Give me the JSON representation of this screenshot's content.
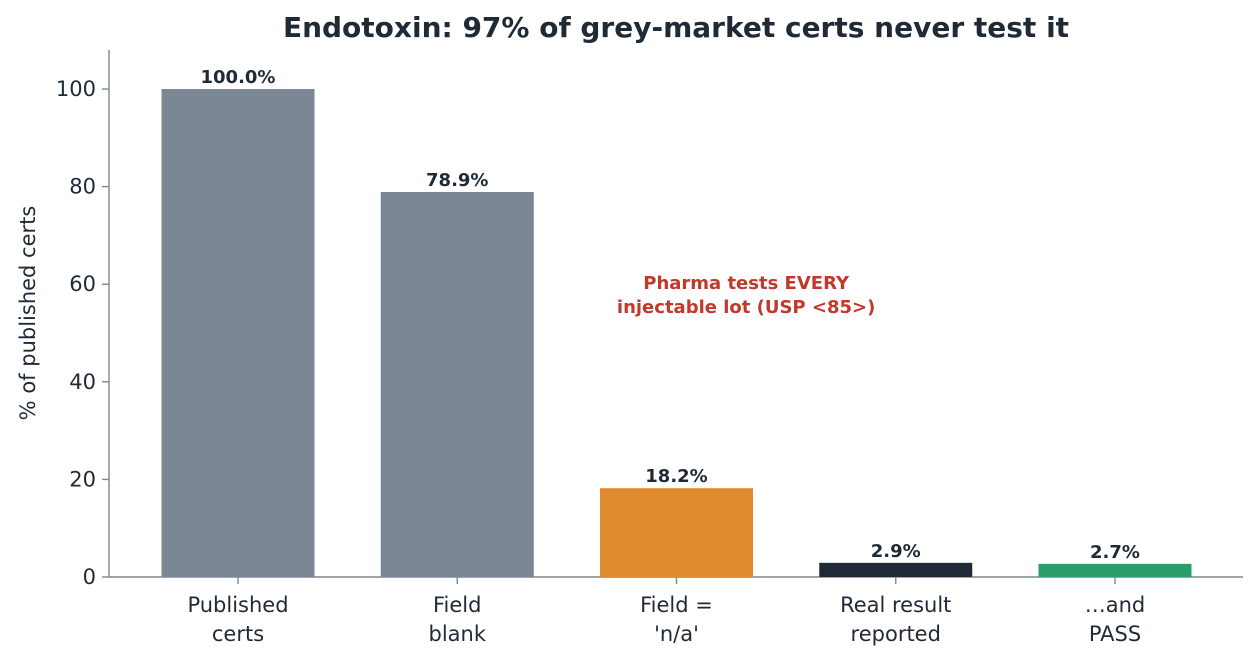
{
  "chart_data": {
    "type": "bar",
    "title": "Endotoxin: 97% of grey-market certs never test it",
    "xlabel": "",
    "ylabel": "% of published certs",
    "ylim": [
      0,
      108
    ],
    "yticks": [
      0,
      20,
      40,
      60,
      80,
      100
    ],
    "grid": false,
    "categories": [
      [
        "Published",
        "certs"
      ],
      [
        "Field",
        "blank"
      ],
      [
        "Field =",
        "'n/a'"
      ],
      [
        "Real result",
        "reported"
      ],
      [
        "…and",
        "PASS"
      ]
    ],
    "values": [
      100.0,
      78.9,
      18.2,
      2.9,
      2.7
    ],
    "data_labels": [
      "100.0%",
      "78.9%",
      "18.2%",
      "2.9%",
      "2.7%"
    ],
    "bar_colors": [
      "#7b8794",
      "#7b8794",
      "#e08c2e",
      "#1f2a36",
      "#2a9d6a"
    ],
    "annotation": {
      "lines": [
        "Pharma tests EVERY",
        "injectable lot (USP <85>)"
      ],
      "color": "#c0392b",
      "x_category_index": 2.5,
      "y_value": 59
    }
  }
}
